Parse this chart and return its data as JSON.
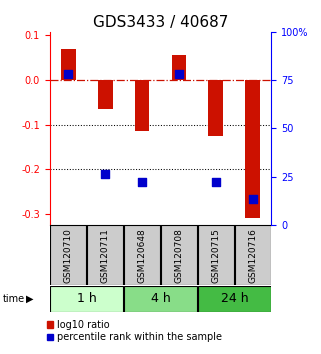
{
  "title": "GDS3433 / 40687",
  "samples": [
    "GSM120710",
    "GSM120711",
    "GSM120648",
    "GSM120708",
    "GSM120715",
    "GSM120716"
  ],
  "groups": [
    {
      "label": "1 h",
      "indices": [
        0,
        1
      ],
      "color": "#ccffcc"
    },
    {
      "label": "4 h",
      "indices": [
        2,
        3
      ],
      "color": "#88dd88"
    },
    {
      "label": "24 h",
      "indices": [
        4,
        5
      ],
      "color": "#44bb44"
    }
  ],
  "log10_ratio": [
    0.07,
    -0.065,
    -0.115,
    0.057,
    -0.125,
    -0.31
  ],
  "dot_y_left": [
    0.013,
    -0.212,
    -0.228,
    0.013,
    -0.228,
    -0.268
  ],
  "bar_color": "#cc1100",
  "dot_color": "#0000cc",
  "ylim_left": [
    -0.325,
    0.108
  ],
  "ylim_right": [
    0,
    100
  ],
  "yticks_left": [
    0.1,
    0.0,
    -0.1,
    -0.2,
    -0.3
  ],
  "yticks_right": [
    100,
    75,
    50,
    25,
    0
  ],
  "hline_positions": [
    -0.1,
    -0.2
  ],
  "bar_width": 0.4,
  "dot_size": 40,
  "title_fontsize": 11,
  "tick_fontsize": 7,
  "group_label_fontsize": 9,
  "sample_label_fontsize": 6.5,
  "legend_fontsize": 7,
  "bg_color": "#ffffff",
  "box_color": "#cccccc"
}
